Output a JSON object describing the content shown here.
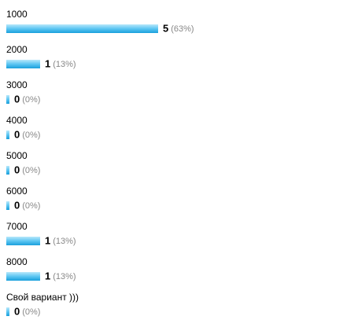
{
  "chart_data": {
    "type": "bar",
    "categories": [
      "1000",
      "2000",
      "3000",
      "4000",
      "5000",
      "6000",
      "7000",
      "8000",
      "Свой вариант )))"
    ],
    "values": [
      5,
      1,
      0,
      0,
      0,
      0,
      1,
      1,
      0
    ],
    "percents": [
      63,
      13,
      0,
      0,
      0,
      0,
      13,
      13,
      0
    ],
    "percent_labels": [
      "(63%)",
      "(13%)",
      "(0%)",
      "(0%)",
      "(0%)",
      "(0%)",
      "(13%)",
      "(13%)",
      "(0%)"
    ]
  }
}
